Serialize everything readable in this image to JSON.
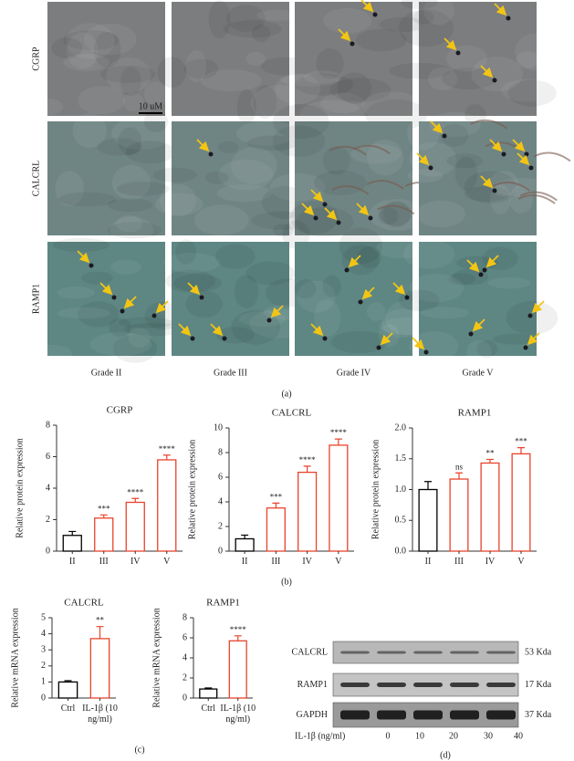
{
  "figure_a": {
    "panel_label": "(a)",
    "rows": [
      "CGRP",
      "CALCRL",
      "RAMP1"
    ],
    "columns": [
      "Grade II",
      "Grade III",
      "Grade IV",
      "Grade V"
    ],
    "scale_bar": "10 uM"
  },
  "chart_data": [
    {
      "type": "bar",
      "title": "CGRP",
      "ylabel": "Relative protein expression",
      "categories": [
        "II",
        "III",
        "IV",
        "V"
      ],
      "values": [
        1.0,
        2.1,
        3.1,
        5.8
      ],
      "errors": [
        0.25,
        0.2,
        0.25,
        0.3
      ],
      "annotations": [
        null,
        "***",
        "****",
        "****"
      ],
      "colors": [
        "#000000",
        "#e8432b",
        "#e8432b",
        "#e8432b"
      ],
      "ylim": [
        0,
        8
      ],
      "yticks": [
        0,
        2,
        4,
        6,
        8
      ]
    },
    {
      "type": "bar",
      "title": "CALCRL",
      "ylabel": "Relative protein expression",
      "categories": [
        "II",
        "III",
        "IV",
        "V"
      ],
      "values": [
        1.0,
        3.5,
        6.4,
        8.6
      ],
      "errors": [
        0.3,
        0.4,
        0.5,
        0.5
      ],
      "annotations": [
        null,
        "***",
        "****",
        "****"
      ],
      "colors": [
        "#000000",
        "#e8432b",
        "#e8432b",
        "#e8432b"
      ],
      "ylim": [
        0,
        10
      ],
      "yticks": [
        0,
        2,
        4,
        6,
        8,
        10
      ]
    },
    {
      "type": "bar",
      "title": "RAMP1",
      "ylabel": "Relative protein expression",
      "categories": [
        "II",
        "III",
        "IV",
        "V"
      ],
      "values": [
        1.0,
        1.17,
        1.43,
        1.58
      ],
      "errors": [
        0.13,
        0.1,
        0.06,
        0.1
      ],
      "annotations": [
        null,
        "ns",
        "**",
        "***"
      ],
      "colors": [
        "#000000",
        "#e8432b",
        "#e8432b",
        "#e8432b"
      ],
      "ylim": [
        0,
        2
      ],
      "yticks": [
        {
          "value": 0,
          "label": "0.0"
        },
        0.5,
        {
          "value": 1,
          "label": "1.0"
        },
        1.5,
        {
          "value": 2,
          "label": "2.0"
        }
      ]
    },
    {
      "type": "bar",
      "title": "CALCRL",
      "ylabel": "Relative mRNA expression",
      "categories": [
        "Ctrl",
        "IL-1β (10 ng/ml)"
      ],
      "values": [
        1.0,
        3.7
      ],
      "errors": [
        0.08,
        0.75
      ],
      "annotations": [
        null,
        "**"
      ],
      "colors": [
        "#000000",
        "#e8432b"
      ],
      "ylim": [
        0,
        5
      ],
      "yticks": [
        0,
        1,
        2,
        3,
        4,
        5
      ]
    },
    {
      "type": "bar",
      "title": "RAMP1",
      "ylabel": "Relative mRNA expression",
      "categories": [
        "Ctrl",
        "IL-1β (10 ng/ml)"
      ],
      "values": [
        0.9,
        5.7
      ],
      "errors": [
        0.1,
        0.5
      ],
      "annotations": [
        null,
        "****"
      ],
      "colors": [
        "#000000",
        "#e8432b"
      ],
      "ylim": [
        0,
        8
      ],
      "yticks": [
        0,
        2,
        4,
        6,
        8
      ]
    }
  ],
  "panel_labels": {
    "b": "(b)",
    "c": "(c)",
    "d": "(d)"
  },
  "blot": {
    "proteins": [
      "CALCRL",
      "RAMP1",
      "GAPDH"
    ],
    "sizes": [
      "53 Kda",
      "17 Kda",
      "37 Kda"
    ],
    "treatment": "IL-1β (ng/ml)",
    "lanes": [
      "0",
      "10",
      "20",
      "30",
      "40"
    ]
  }
}
